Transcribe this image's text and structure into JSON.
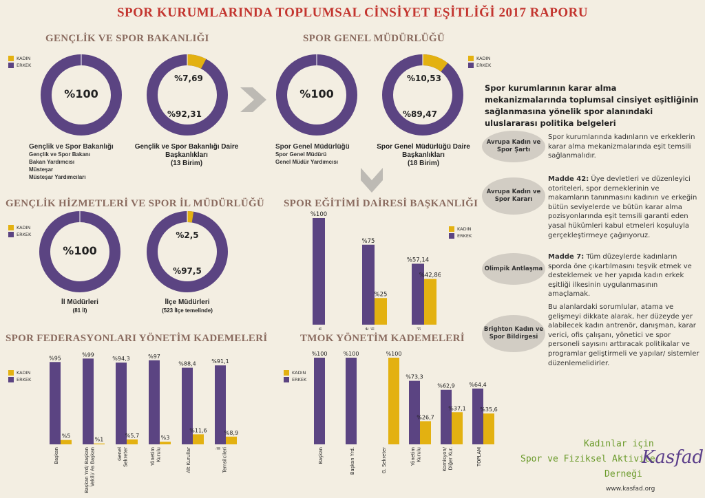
{
  "title": "SPOR KURUMLARINDA TOPLUMSAL CİNSİYET EŞİTLİĞİ 2017 RAPORU",
  "colors": {
    "kadin": "#e3b111",
    "erkek": "#5b4482",
    "bg": "#f3eee2",
    "title": "#c3352f",
    "section": "#8a6b5f"
  },
  "legend": {
    "kadin": "KADIN",
    "erkek": "ERKEK"
  },
  "sections": {
    "gsb": "GENÇLİK VE SPOR BAKANLIĞI",
    "sgm": "SPOR GENEL MÜDÜRLÜĞÜ",
    "ghsim": "GENÇLİK HİZMETLERİ VE SPOR İL MÜDÜRLÜĞÜ",
    "sedb": "SPOR EĞİTİMİ DAİRESİ BAŞKANLIĞI",
    "sfyk": "SPOR FEDERASYONLARI YÖNETİM KADEMELERİ",
    "tmok": "TMOK YÖNETİM KADEMELERİ"
  },
  "captions": {
    "d1_title": "Gençlik ve Spor Bakanlığı",
    "d1_lines": [
      "Gençlik ve Spor Bakanı",
      "Bakan Yardımcısı",
      "Müsteşar",
      "Müsteşar Yardımcıları"
    ],
    "d2_title": "Gençlik ve Spor Bakanlığı Daire Başkanlıkları",
    "d2_sub": "(13 Birim)",
    "d3_title": "Spor Genel Müdürlüğü",
    "d3_lines": [
      "Spor Genel Müdürü",
      "Genel Müdür Yardımcısı"
    ],
    "d4_title": "Spor Genel Müdürlüğü Daire Başkanlıkları",
    "d4_sub": "(18 Birim)",
    "d5_title": "İl Müdürleri",
    "d5_sub": "(81 İl)",
    "d6_title": "İlçe Müdürleri",
    "d6_sub": "(523 İlçe temelinde)"
  },
  "right": {
    "heading": "Spor kurumlarının karar alma mekanizmalarında toplumsal cinsiyet eşitliğinin sağlanmasına yönelik spor alanındaki uluslararası politika belgeleri",
    "items": [
      {
        "label": "Avrupa Kadın ve Spor Şartı",
        "lead": "",
        "text": "Spor kurumlarında kadınların ve erkeklerin karar alma mekanizmalarında eşit temsili sağlanmalıdır."
      },
      {
        "label": "Avrupa Kadın ve Spor Kararı",
        "lead": "Madde 42:",
        "text": " Üye devletleri ve düzenleyici otoriteleri, spor derneklerinin ve makamların tanınmasını kadının ve erkeğin bütün seviyelerde ve bütün karar alma pozisyonlarında eşit temsili garanti eden yasal hükümleri kabul etmeleri koşuluyla gerçekleştirmeye çağırıyoruz."
      },
      {
        "label": "Olimpik Antlaşma",
        "lead": "Madde 7:",
        "text": " Tüm düzeylerde kadınların sporda öne çıkartılmasını teşvik etmek ve desteklemek ve her yapıda kadın erkek eşitliği ilkesinin uygulanmasının amaçlamak."
      },
      {
        "label": "Brighton Kadın ve Spor Bildirgesi",
        "lead": "",
        "text": "Bu alanlardaki sorumlular, atama ve gelişmeyi dikkate alarak, her düzeyde yer alabilecek kadın antrenör, danışman, karar verici, ofis çalışanı, yönetici ve spor personeli sayısını arttıracak politikalar ve programlar geliştirmeli ve yapılar/ sistemler düzenlemelidirler."
      }
    ]
  },
  "logo": {
    "line1": "Kadınlar için",
    "line2": "Spor ve Fiziksel Aktivite",
    "line3": "Derneği",
    "brand": "Kasfad",
    "url": "www.kasfad.org"
  },
  "chart_data": [
    {
      "type": "pie",
      "name": "gsb_ust",
      "slices": [
        {
          "label": "KADIN",
          "value": 0
        },
        {
          "label": "ERKEK",
          "value": 100
        }
      ],
      "labels": [
        "%100"
      ]
    },
    {
      "type": "pie",
      "name": "gsb_daire",
      "slices": [
        {
          "label": "KADIN",
          "value": 7.69
        },
        {
          "label": "ERKEK",
          "value": 92.31
        }
      ],
      "labels": [
        "%7,69",
        "%92,31"
      ]
    },
    {
      "type": "pie",
      "name": "sgm_ust",
      "slices": [
        {
          "label": "KADIN",
          "value": 0
        },
        {
          "label": "ERKEK",
          "value": 100
        }
      ],
      "labels": [
        "%100"
      ]
    },
    {
      "type": "pie",
      "name": "sgm_daire",
      "slices": [
        {
          "label": "KADIN",
          "value": 10.53
        },
        {
          "label": "ERKEK",
          "value": 89.47
        }
      ],
      "labels": [
        "%10,53",
        "%89,47"
      ]
    },
    {
      "type": "pie",
      "name": "il",
      "slices": [
        {
          "label": "KADIN",
          "value": 0
        },
        {
          "label": "ERKEK",
          "value": 100
        }
      ],
      "labels": [
        "%100"
      ]
    },
    {
      "type": "pie",
      "name": "ilce",
      "slices": [
        {
          "label": "KADIN",
          "value": 2.5
        },
        {
          "label": "ERKEK",
          "value": 97.5
        }
      ],
      "labels": [
        "%2,5",
        "%97,5"
      ]
    },
    {
      "type": "bar",
      "name": "sedb",
      "categories": [
        "Başkan",
        "Şube Müdürleri",
        "Personel"
      ],
      "series": [
        {
          "name": "ERKEK",
          "values": [
            100,
            75,
            57.14
          ],
          "labels": [
            "%100",
            "%75",
            "%57,14"
          ]
        },
        {
          "name": "KADIN",
          "values": [
            0,
            25,
            42.86
          ],
          "labels": [
            "",
            "%25",
            "%42,86"
          ]
        }
      ],
      "ylim": [
        0,
        100
      ]
    },
    {
      "type": "bar",
      "name": "sfyk",
      "categories": [
        "Başkan",
        "Başkan Yrd/ Başkan Vekili/ As Başkan",
        "Genel Sekreter",
        "Yönetim Kurulu",
        "Alt Kurullar",
        "İl Temsilcileri"
      ],
      "series": [
        {
          "name": "ERKEK",
          "values": [
            95,
            99,
            94.3,
            97,
            88.4,
            91.1
          ],
          "labels": [
            "%95",
            "%99",
            "%94,3",
            "%97",
            "%88,4",
            "%91,1"
          ]
        },
        {
          "name": "KADIN",
          "values": [
            5,
            1,
            5.7,
            3,
            11.6,
            8.9
          ],
          "labels": [
            "%5",
            "%1",
            "%5,7",
            "%3",
            "%11,6",
            "%8,9"
          ]
        }
      ],
      "ylim": [
        0,
        100
      ]
    },
    {
      "type": "bar",
      "name": "tmok",
      "categories": [
        "Başkan",
        "Başkan Yrd.",
        "G. Sekreter",
        "Yönetim Kurulu",
        "Komisyon/ Diğer Kur.",
        "TOPLAM"
      ],
      "series": [
        {
          "name": "ERKEK",
          "values": [
            100,
            100,
            0,
            73.3,
            62.9,
            64.4
          ],
          "labels": [
            "%100",
            "%100",
            "",
            "%73,3",
            "%62,9",
            "%64,4"
          ]
        },
        {
          "name": "KADIN",
          "values": [
            0,
            0,
            100,
            26.7,
            37.1,
            35.6
          ],
          "labels": [
            "",
            "",
            "%100",
            "%26,7",
            "%37,1",
            "%35,6"
          ]
        }
      ],
      "ylim": [
        0,
        100
      ]
    }
  ]
}
